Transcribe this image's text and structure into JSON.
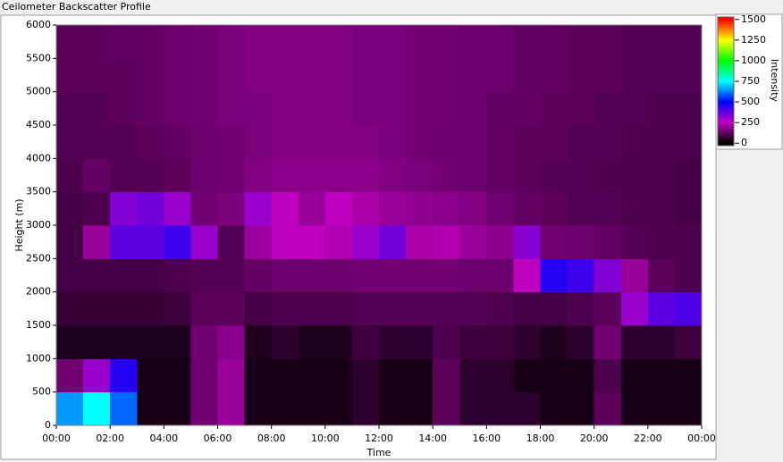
{
  "chart_data": {
    "type": "heatmap",
    "title": "Ceilometer Backscatter Profile",
    "x_label": "Time",
    "y_label": "Height (m)",
    "xlim": [
      0,
      24
    ],
    "xticks": [
      {
        "value": 0,
        "label": "00:00"
      },
      {
        "value": 2,
        "label": "02:00"
      },
      {
        "value": 4,
        "label": "04:00"
      },
      {
        "value": 6,
        "label": "06:00"
      },
      {
        "value": 8,
        "label": "08:00"
      },
      {
        "value": 10,
        "label": "10:00"
      },
      {
        "value": 12,
        "label": "12:00"
      },
      {
        "value": 14,
        "label": "14:00"
      },
      {
        "value": 16,
        "label": "16:00"
      },
      {
        "value": 18,
        "label": "18:00"
      },
      {
        "value": 20,
        "label": "20:00"
      },
      {
        "value": 22,
        "label": "22:00"
      },
      {
        "value": 24,
        "label": "00:00"
      }
    ],
    "ylim": [
      0,
      6000
    ],
    "yticks": [
      0,
      500,
      1000,
      1500,
      2000,
      2500,
      3000,
      3500,
      4000,
      4500,
      5000,
      5500,
      6000
    ],
    "x_bins": [
      0,
      1,
      2,
      3,
      4,
      5,
      6,
      7,
      8,
      9,
      10,
      11,
      12,
      13,
      14,
      15,
      16,
      17,
      18,
      19,
      20,
      21,
      22,
      23,
      24
    ],
    "y_bins": [
      0,
      500,
      1000,
      1500,
      2000,
      2500,
      3000,
      3500,
      4000,
      4500,
      5000,
      5500,
      6000
    ],
    "values": [
      [
        650,
        750,
        600,
        30,
        30,
        150,
        200,
        30,
        30,
        30,
        30,
        60,
        30,
        30,
        120,
        60,
        60,
        60,
        30,
        30,
        120,
        30,
        30,
        30
      ],
      [
        150,
        300,
        450,
        30,
        30,
        150,
        200,
        30,
        30,
        30,
        30,
        60,
        30,
        30,
        120,
        60,
        60,
        30,
        30,
        30,
        100,
        30,
        30,
        30
      ],
      [
        40,
        40,
        40,
        40,
        40,
        150,
        180,
        40,
        60,
        40,
        40,
        80,
        60,
        60,
        100,
        80,
        80,
        60,
        40,
        60,
        150,
        60,
        60,
        80
      ],
      [
        70,
        70,
        70,
        70,
        80,
        120,
        120,
        90,
        100,
        100,
        100,
        110,
        110,
        110,
        110,
        110,
        100,
        90,
        90,
        100,
        120,
        300,
        380,
        400
      ],
      [
        90,
        90,
        90,
        90,
        100,
        110,
        110,
        130,
        140,
        140,
        140,
        150,
        150,
        150,
        150,
        140,
        140,
        250,
        450,
        420,
        330,
        200,
        120,
        100
      ],
      [
        90,
        200,
        380,
        380,
        420,
        300,
        110,
        200,
        250,
        250,
        230,
        300,
        350,
        220,
        230,
        200,
        180,
        320,
        150,
        140,
        130,
        110,
        100,
        100
      ],
      [
        90,
        100,
        330,
        350,
        300,
        150,
        160,
        300,
        250,
        200,
        250,
        220,
        200,
        190,
        180,
        170,
        150,
        130,
        120,
        110,
        110,
        100,
        100,
        90
      ],
      [
        100,
        130,
        110,
        110,
        120,
        140,
        150,
        170,
        180,
        180,
        180,
        180,
        170,
        160,
        150,
        140,
        130,
        120,
        110,
        110,
        100,
        100,
        100,
        90
      ],
      [
        110,
        110,
        110,
        120,
        130,
        140,
        150,
        160,
        170,
        170,
        170,
        170,
        160,
        150,
        140,
        140,
        130,
        120,
        120,
        110,
        110,
        100,
        100,
        100
      ],
      [
        110,
        110,
        120,
        130,
        140,
        150,
        160,
        160,
        170,
        170,
        170,
        160,
        160,
        150,
        150,
        140,
        130,
        130,
        120,
        120,
        110,
        110,
        100,
        100
      ],
      [
        120,
        120,
        120,
        130,
        140,
        150,
        160,
        170,
        170,
        170,
        170,
        160,
        160,
        150,
        150,
        140,
        140,
        130,
        130,
        120,
        120,
        110,
        110,
        110
      ],
      [
        120,
        120,
        130,
        130,
        140,
        150,
        160,
        170,
        170,
        170,
        170,
        160,
        160,
        150,
        150,
        140,
        140,
        130,
        130,
        120,
        120,
        110,
        110,
        110
      ]
    ],
    "colorbar": {
      "label": "Intensity",
      "lim": [
        -30,
        1530
      ],
      "ticks": [
        0,
        250,
        500,
        750,
        1000,
        1250,
        1500
      ],
      "colors": [
        "#000000",
        "#c000c0",
        "#0000ff",
        "#00ffff",
        "#00ff00",
        "#ffff00",
        "#ff0000"
      ]
    }
  }
}
